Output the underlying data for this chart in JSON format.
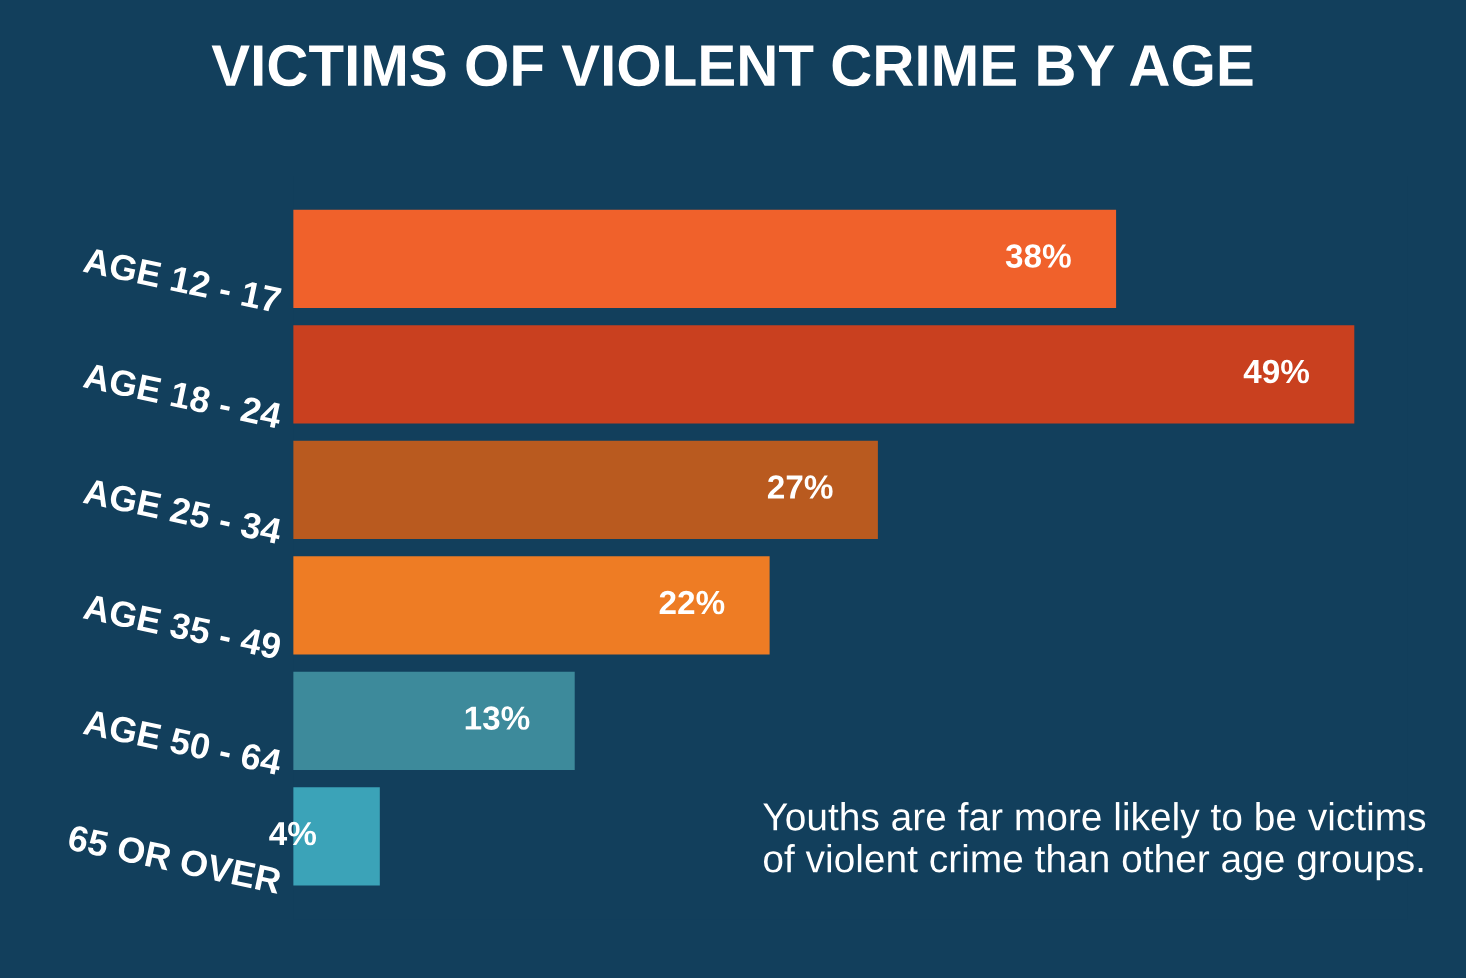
{
  "chart_data": {
    "type": "bar",
    "orientation": "horizontal",
    "title": "VICTIMS OF VIOLENT CRIME BY AGE",
    "categories": [
      "AGE 12 - 17",
      "AGE 18 - 24",
      "AGE 25 - 34",
      "AGE 35 - 49",
      "AGE 50 - 64",
      "65 OR OVER"
    ],
    "values": [
      38,
      49,
      27,
      22,
      13,
      4
    ],
    "value_labels": [
      "38%",
      "49%",
      "27%",
      "22%",
      "13%",
      "4%"
    ],
    "colors": [
      "#f0612b",
      "#c9401f",
      "#b95a1f",
      "#ee7c24",
      "#3d8a9b",
      "#3ba3b8"
    ],
    "annotations": [
      "Youths are far more likely to be victims of violent crime than other age groups."
    ],
    "tick_labels": "y",
    "grid": false,
    "legend": false
  }
}
